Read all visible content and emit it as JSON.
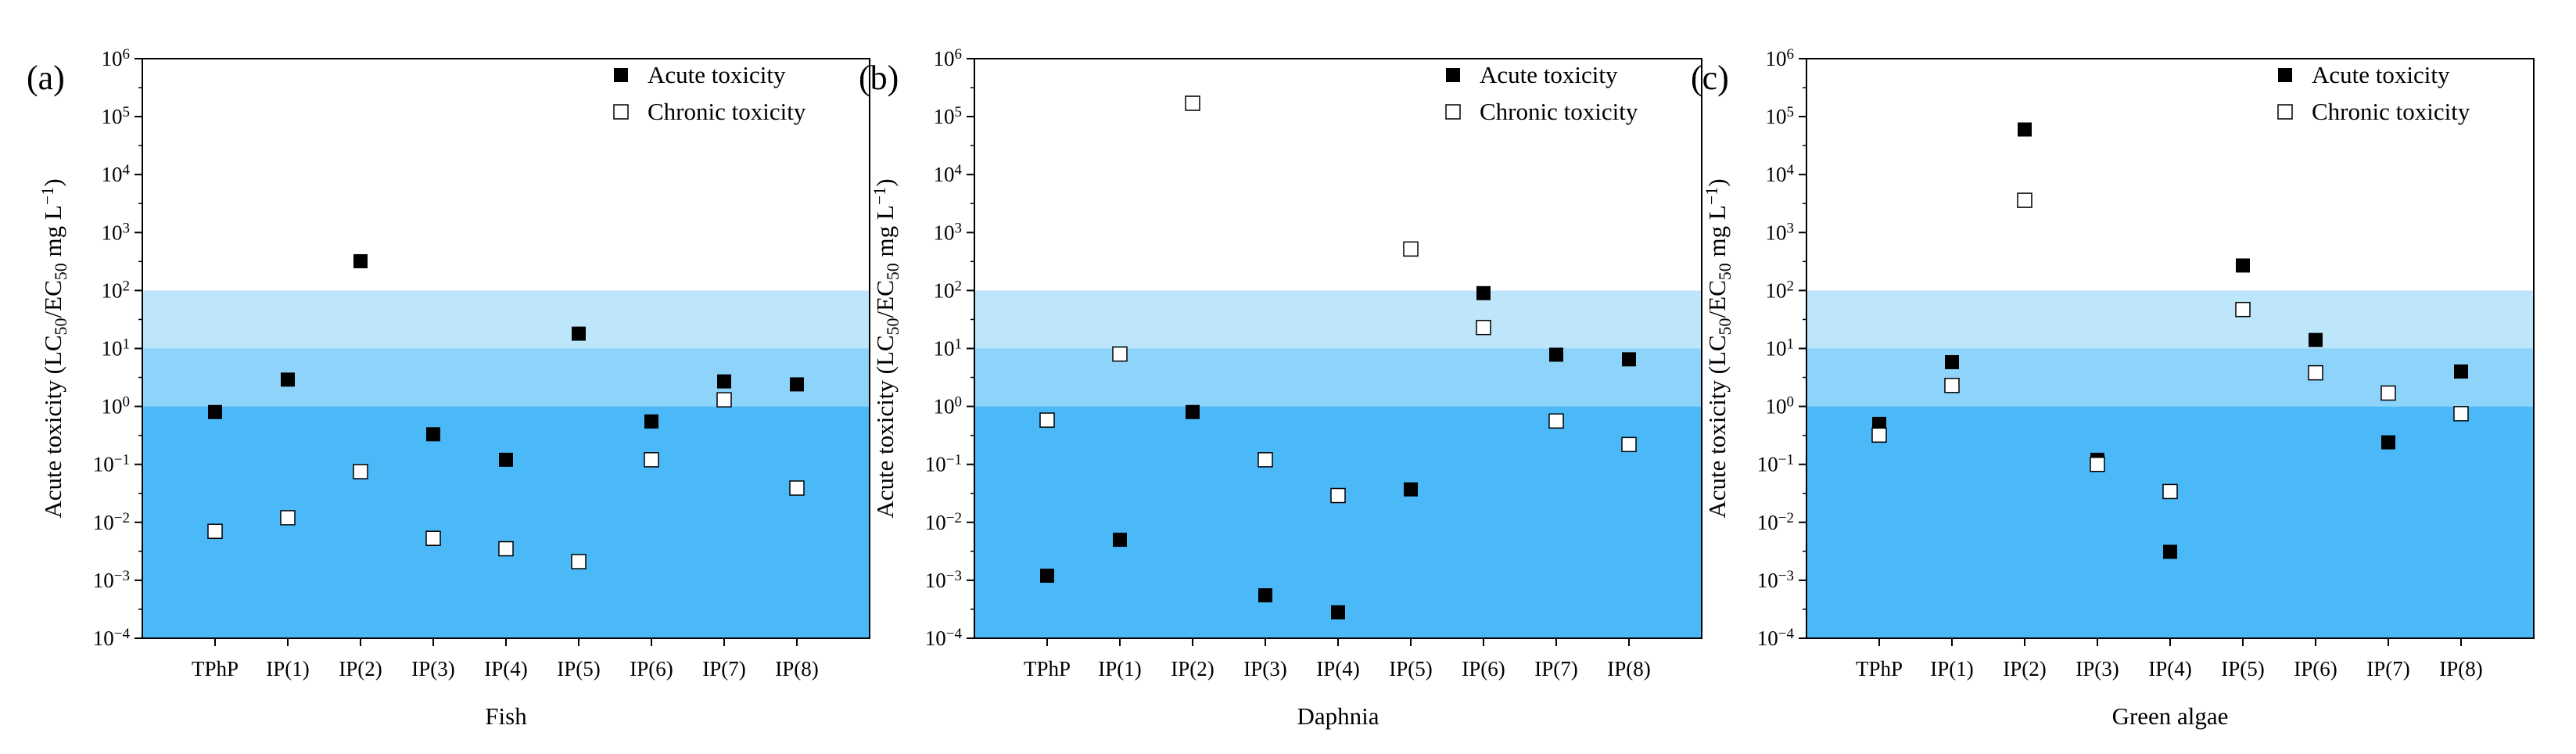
{
  "colors": {
    "band_low": "#4BB9F8",
    "band_mid": "#8ED3FA",
    "band_high": "#BDE6FB",
    "acute_marker": "#000000",
    "chronic_marker": "#ffffff"
  },
  "chart_data": [
    {
      "panel_label": "(a)",
      "type": "scatter",
      "xlabel": "Fish",
      "ylabel": "Acute toxicity (LC50/EC50 mg L−1)",
      "yscale": "log",
      "ylim": [
        0.0001,
        1000000
      ],
      "yticks": [
        {
          "base": "10",
          "exp": "−4"
        },
        {
          "base": "10",
          "exp": "−3"
        },
        {
          "base": "10",
          "exp": "−2"
        },
        {
          "base": "10",
          "exp": "−1"
        },
        {
          "base": "10",
          "exp": "0"
        },
        {
          "base": "10",
          "exp": "1"
        },
        {
          "base": "10",
          "exp": "2"
        },
        {
          "base": "10",
          "exp": "3"
        },
        {
          "base": "10",
          "exp": "4"
        },
        {
          "base": "10",
          "exp": "5"
        },
        {
          "base": "10",
          "exp": "6"
        }
      ],
      "hazard_bands": [
        {
          "from": 0.0001,
          "to": 1
        },
        {
          "from": 1,
          "to": 10
        },
        {
          "from": 10,
          "to": 100
        }
      ],
      "categories": [
        "TPhP",
        "IP(1)",
        "IP(2)",
        "IP(3)",
        "IP(4)",
        "IP(5)",
        "IP(6)",
        "IP(7)",
        "IP(8)"
      ],
      "legend_position": "top-right",
      "series": [
        {
          "name": "Acute toxicity",
          "marker": "filled-square",
          "values": [
            0.8,
            2.9,
            320,
            0.33,
            0.12,
            18,
            0.55,
            2.7,
            2.4
          ]
        },
        {
          "name": "Chronic toxicity",
          "marker": "open-square",
          "values": [
            0.007,
            0.012,
            0.075,
            0.0053,
            0.0035,
            0.0021,
            0.12,
            1.3,
            0.039
          ]
        }
      ]
    },
    {
      "panel_label": "(b)",
      "type": "scatter",
      "xlabel": "Daphnia",
      "ylabel": "Acute toxicity (LC50/EC50 mg L−1)",
      "yscale": "log",
      "ylim": [
        0.0001,
        1000000
      ],
      "yticks": [
        {
          "base": "10",
          "exp": "−4"
        },
        {
          "base": "10",
          "exp": "−3"
        },
        {
          "base": "10",
          "exp": "−2"
        },
        {
          "base": "10",
          "exp": "−1"
        },
        {
          "base": "10",
          "exp": "0"
        },
        {
          "base": "10",
          "exp": "1"
        },
        {
          "base": "10",
          "exp": "2"
        },
        {
          "base": "10",
          "exp": "3"
        },
        {
          "base": "10",
          "exp": "4"
        },
        {
          "base": "10",
          "exp": "5"
        },
        {
          "base": "10",
          "exp": "6"
        }
      ],
      "hazard_bands": [
        {
          "from": 0.0001,
          "to": 1
        },
        {
          "from": 1,
          "to": 10
        },
        {
          "from": 10,
          "to": 100
        }
      ],
      "categories": [
        "TPhP",
        "IP(1)",
        "IP(2)",
        "IP(3)",
        "IP(4)",
        "IP(5)",
        "IP(6)",
        "IP(7)",
        "IP(8)"
      ],
      "legend_position": "top-right",
      "series": [
        {
          "name": "Acute toxicity",
          "marker": "filled-square",
          "values": [
            0.0012,
            0.005,
            0.8,
            0.00055,
            0.00028,
            0.037,
            90,
            7.8,
            6.5
          ]
        },
        {
          "name": "Chronic toxicity",
          "marker": "open-square",
          "values": [
            0.58,
            8,
            170000,
            0.12,
            0.029,
            520,
            23,
            0.56,
            0.22
          ]
        }
      ]
    },
    {
      "panel_label": "(c)",
      "type": "scatter",
      "xlabel": "Green algae",
      "ylabel": "Acute toxicity (LC50/EC50 mg L−1)",
      "yscale": "log",
      "ylim": [
        0.0001,
        1000000
      ],
      "yticks": [
        {
          "base": "10",
          "exp": "−4"
        },
        {
          "base": "10",
          "exp": "−3"
        },
        {
          "base": "10",
          "exp": "−2"
        },
        {
          "base": "10",
          "exp": "−1"
        },
        {
          "base": "10",
          "exp": "0"
        },
        {
          "base": "10",
          "exp": "1"
        },
        {
          "base": "10",
          "exp": "2"
        },
        {
          "base": "10",
          "exp": "3"
        },
        {
          "base": "10",
          "exp": "4"
        },
        {
          "base": "10",
          "exp": "5"
        },
        {
          "base": "10",
          "exp": "6"
        }
      ],
      "hazard_bands": [
        {
          "from": 0.0001,
          "to": 1
        },
        {
          "from": 1,
          "to": 10
        },
        {
          "from": 10,
          "to": 100
        }
      ],
      "categories": [
        "TPhP",
        "IP(1)",
        "IP(2)",
        "IP(3)",
        "IP(4)",
        "IP(5)",
        "IP(6)",
        "IP(7)",
        "IP(8)"
      ],
      "legend_position": "top-right",
      "series": [
        {
          "name": "Acute toxicity",
          "marker": "filled-square",
          "values": [
            0.5,
            5.8,
            60000,
            0.12,
            0.0031,
            270,
            14,
            0.24,
            4
          ]
        },
        {
          "name": "Chronic toxicity",
          "marker": "open-square",
          "values": [
            0.32,
            2.3,
            3600,
            0.1,
            0.034,
            47,
            3.8,
            1.7,
            0.75
          ]
        }
      ]
    }
  ]
}
